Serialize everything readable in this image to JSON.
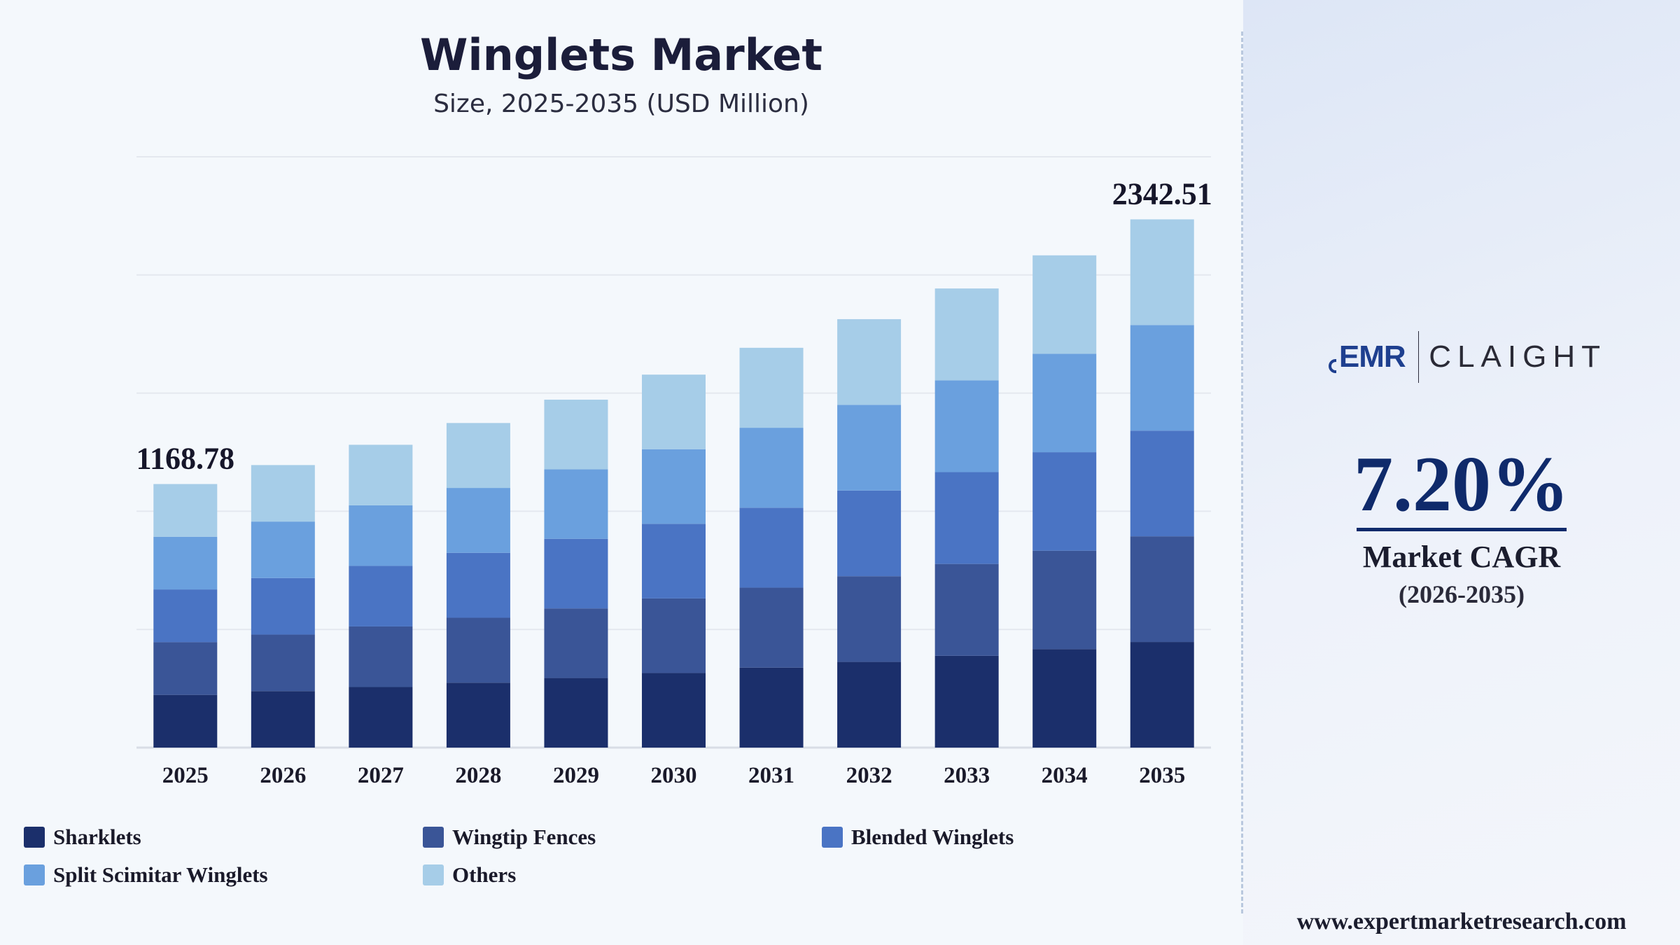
{
  "chart_data": {
    "type": "bar",
    "stacked": true,
    "title": "Winglets Market",
    "subtitle": "Size, 2025-2035 (USD Million)",
    "categories": [
      "2025",
      "2026",
      "2027",
      "2028",
      "2029",
      "2030",
      "2031",
      "2032",
      "2033",
      "2034",
      "2035"
    ],
    "totals": [
      1168.78,
      1252.9,
      1342.9,
      1439.4,
      1543.0,
      1654.0,
      1773.0,
      1900.0,
      2036.0,
      2183.0,
      2342.51
    ],
    "series": [
      {
        "name": "Sharklets",
        "color": "#1b2f6b",
        "values": [
          233.8,
          250.6,
          268.6,
          287.9,
          308.6,
          330.8,
          354.6,
          380.0,
          407.2,
          436.6,
          468.5
        ]
      },
      {
        "name": "Wingtip Fences",
        "color": "#3a5597",
        "values": [
          233.7,
          250.6,
          268.6,
          287.9,
          308.6,
          330.8,
          354.6,
          380.0,
          407.2,
          436.6,
          468.5
        ]
      },
      {
        "name": "Blended Winglets",
        "color": "#4a74c4",
        "values": [
          233.8,
          250.6,
          268.6,
          287.9,
          308.6,
          330.8,
          354.6,
          380.0,
          407.2,
          436.6,
          468.5
        ]
      },
      {
        "name": "Split Scimitar Winglets",
        "color": "#6aa0de",
        "values": [
          233.7,
          250.5,
          268.5,
          287.8,
          308.6,
          330.8,
          354.6,
          380.0,
          407.2,
          436.6,
          468.5
        ]
      },
      {
        "name": "Others",
        "color": "#a6cde8",
        "values": [
          233.8,
          250.6,
          268.6,
          287.9,
          308.6,
          330.8,
          354.6,
          380.0,
          407.2,
          436.6,
          468.51
        ]
      }
    ],
    "value_labels": [
      {
        "category": "2025",
        "text": "1168.78"
      },
      {
        "category": "2035",
        "text": "2342.51"
      }
    ],
    "ylim": [
      0,
      2620
    ],
    "y_gridlines": [
      0,
      524,
      1048,
      1572,
      2096,
      2620
    ],
    "grid": true,
    "legend": "bottom"
  },
  "side_panel": {
    "brand_left": "EMR",
    "brand_right": "CLAIGHT",
    "cagr_value": "7.20%",
    "cagr_label": "Market CAGR",
    "cagr_period": "(2026-2035)",
    "website": "www.expertmarketresearch.com"
  }
}
